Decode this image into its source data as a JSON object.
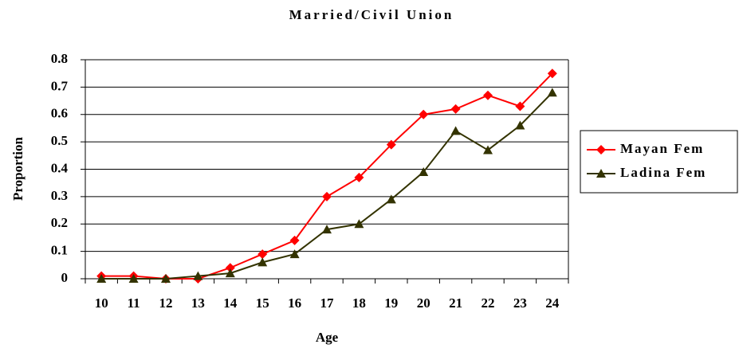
{
  "chart_data": {
    "type": "line",
    "title": "Married/Civil Union",
    "x_label": "Age",
    "y_label": "Proportion",
    "categories": [
      "10",
      "11",
      "12",
      "13",
      "14",
      "15",
      "16",
      "17",
      "18",
      "19",
      "20",
      "21",
      "22",
      "23",
      "24"
    ],
    "series": [
      {
        "name": "Mayan Fem",
        "color": "#ff0000",
        "marker": "diamond",
        "values": [
          0.01,
          0.01,
          0,
          0,
          0.04,
          0.09,
          0.14,
          0.3,
          0.37,
          0.49,
          0.6,
          0.62,
          0.67,
          0.63,
          0.75
        ]
      },
      {
        "name": "Ladina Fem",
        "color": "#333300",
        "marker": "triangle",
        "values": [
          0,
          0,
          0,
          0.01,
          0.02,
          0.06,
          0.09,
          0.18,
          0.2,
          0.29,
          0.39,
          0.54,
          0.47,
          0.56,
          0.68
        ]
      }
    ],
    "ylim": [
      0,
      0.8
    ],
    "yticks": [
      0,
      0.1,
      0.2,
      0.3,
      0.4,
      0.5,
      0.6,
      0.7,
      0.8
    ],
    "grid": true,
    "legend": "right"
  }
}
